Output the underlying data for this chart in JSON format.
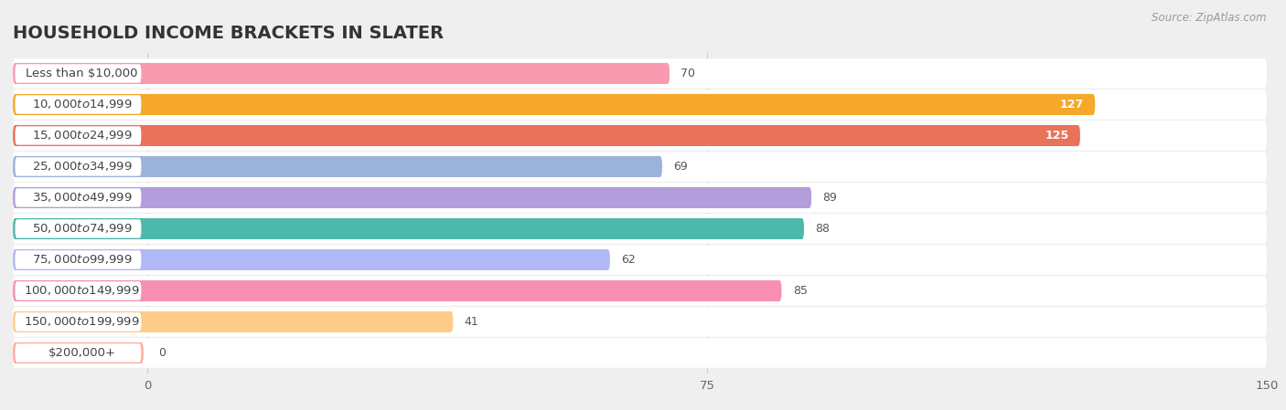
{
  "title": "HOUSEHOLD INCOME BRACKETS IN SLATER",
  "source": "Source: ZipAtlas.com",
  "categories": [
    "Less than $10,000",
    "$10,000 to $14,999",
    "$15,000 to $24,999",
    "$25,000 to $34,999",
    "$35,000 to $49,999",
    "$50,000 to $74,999",
    "$75,000 to $99,999",
    "$100,000 to $149,999",
    "$150,000 to $199,999",
    "$200,000+"
  ],
  "values": [
    70,
    127,
    125,
    69,
    89,
    88,
    62,
    85,
    41,
    0
  ],
  "bar_colors": [
    "#F99BB0",
    "#F5A829",
    "#E8725A",
    "#9BB3D8",
    "#B39DDB",
    "#4DB8AC",
    "#B0B8F5",
    "#F78FB5",
    "#FFCC88",
    "#FFAB9F"
  ],
  "xlim": [
    -18,
    150
  ],
  "data_xlim": [
    0,
    150
  ],
  "xticks": [
    0,
    75,
    150
  ],
  "background_color": "#efefef",
  "row_bg_color": "#ffffff",
  "title_fontsize": 14,
  "label_fontsize": 9.5,
  "value_fontsize": 9,
  "value_inside_threshold": 115
}
